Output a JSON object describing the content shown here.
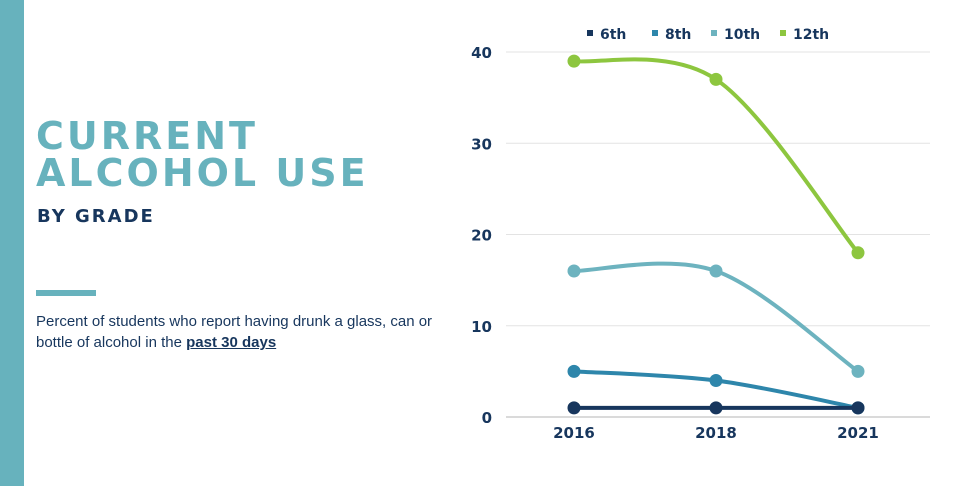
{
  "page": {
    "title_line1": "CURRENT",
    "title_line2": "ALCOHOL USE",
    "subtitle": "BY GRADE",
    "description_main": "Percent of students who report having drunk a glass, can or bottle of alcohol in the",
    "description_emphasis": "past 30 days"
  },
  "colors": {
    "accent": "#67b2bd",
    "text": "#17365d",
    "grid": "#e3e3e3"
  },
  "chart_data": {
    "type": "line",
    "title": "",
    "xlabel": "",
    "ylabel": "",
    "categories": [
      "2016",
      "2018",
      "2021"
    ],
    "ylim": [
      0,
      40
    ],
    "yticks": [
      0,
      10,
      20,
      30,
      40
    ],
    "grid": true,
    "legend_position": "top",
    "series": [
      {
        "name": "6th",
        "color": "#17365d",
        "values": [
          1,
          1,
          1
        ]
      },
      {
        "name": "8th",
        "color": "#2e86ab",
        "values": [
          5,
          4,
          1
        ]
      },
      {
        "name": "10th",
        "color": "#6db3bf",
        "values": [
          16,
          16,
          5
        ]
      },
      {
        "name": "12th",
        "color": "#8dc63f",
        "values": [
          39,
          37,
          18
        ]
      }
    ]
  }
}
